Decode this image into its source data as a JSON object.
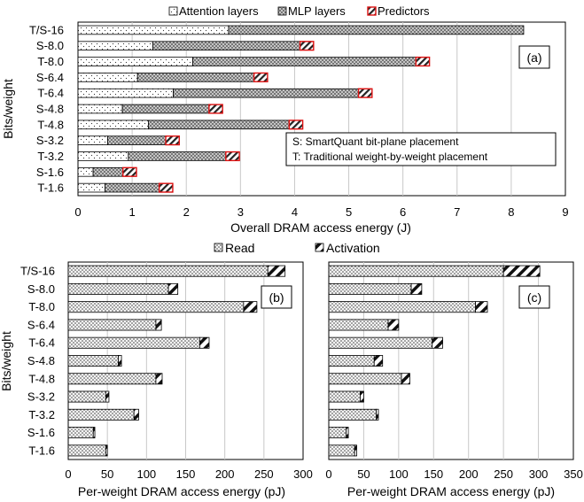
{
  "chart_data": [
    {
      "id": "a",
      "type": "bar",
      "orientation": "horizontal",
      "stacked": true,
      "panel_label": "(a)",
      "categories": [
        "T/S-16",
        "S-8.0",
        "T-8.0",
        "S-6.4",
        "T-6.4",
        "S-4.8",
        "T-4.8",
        "S-3.2",
        "T-3.2",
        "S-1.6",
        "T-1.6"
      ],
      "series": [
        {
          "name": "Attention layers",
          "pattern": "dots",
          "values": [
            2.78,
            1.38,
            2.12,
            1.1,
            1.76,
            0.82,
            1.3,
            0.55,
            0.93,
            0.28,
            0.5
          ]
        },
        {
          "name": "MLP layers",
          "pattern": "crosshatch",
          "values": [
            5.45,
            2.72,
            4.12,
            2.15,
            3.42,
            1.6,
            2.6,
            1.07,
            1.8,
            0.55,
            1.0
          ]
        },
        {
          "name": "Predictors",
          "pattern": "red-diagonal",
          "values": [
            0,
            0.25,
            0.25,
            0.25,
            0.25,
            0.25,
            0.25,
            0.25,
            0.25,
            0.25,
            0.25
          ]
        }
      ],
      "xlabel": "Overall DRAM access energy (J)",
      "ylabel": "Bits/weight",
      "xlim": [
        0,
        9
      ],
      "xticks": [
        0,
        1,
        2,
        3,
        4,
        5,
        6,
        7,
        8,
        9
      ],
      "grid": "vertical",
      "legend_position": "top",
      "annotation": [
        "S: SmartQuant bit-plane placement",
        "T: Traditional weight-by-weight placement"
      ]
    },
    {
      "id": "b",
      "type": "bar",
      "orientation": "horizontal",
      "stacked": true,
      "panel_label": "(b)",
      "categories": [
        "T/S-16",
        "S-8.0",
        "T-8.0",
        "S-6.4",
        "T-6.4",
        "S-4.8",
        "T-4.8",
        "S-3.2",
        "T-3.2",
        "S-1.6",
        "T-1.6"
      ],
      "series": [
        {
          "name": "Read",
          "pattern": "dense-dots",
          "values": [
            255,
            128,
            224,
            112,
            168,
            64,
            112,
            48,
            84,
            32,
            48
          ]
        },
        {
          "name": "Activation",
          "pattern": "black-diagonal",
          "values": [
            22,
            12,
            17,
            7,
            12,
            4,
            8,
            4,
            6,
            2,
            2
          ]
        }
      ],
      "xlabel": "Per-weight DRAM access energy (pJ)",
      "ylabel": "Bits/weight",
      "xlim": [
        0,
        300
      ],
      "xticks": [
        0,
        50,
        100,
        150,
        200,
        250,
        300
      ],
      "grid": "vertical",
      "legend_position": "top"
    },
    {
      "id": "c",
      "type": "bar",
      "orientation": "horizontal",
      "stacked": true,
      "panel_label": "(c)",
      "categories": [
        "T/S-16",
        "S-8.0",
        "T-8.0",
        "S-6.4",
        "T-6.4",
        "S-4.8",
        "T-4.8",
        "S-3.2",
        "T-3.2",
        "S-1.6",
        "T-1.6"
      ],
      "series": [
        {
          "name": "Read",
          "pattern": "dense-dots",
          "values": [
            250,
            118,
            210,
            85,
            148,
            65,
            104,
            45,
            68,
            25,
            37
          ]
        },
        {
          "name": "Activation",
          "pattern": "black-diagonal",
          "values": [
            52,
            15,
            17,
            15,
            15,
            12,
            12,
            5,
            3,
            3,
            3
          ]
        }
      ],
      "xlabel": "Per-weight DRAM access energy (pJ)",
      "xlim": [
        0,
        350
      ],
      "xticks": [
        0,
        50,
        100,
        150,
        200,
        250,
        300,
        350
      ],
      "grid": "vertical",
      "legend_position": "top"
    }
  ]
}
